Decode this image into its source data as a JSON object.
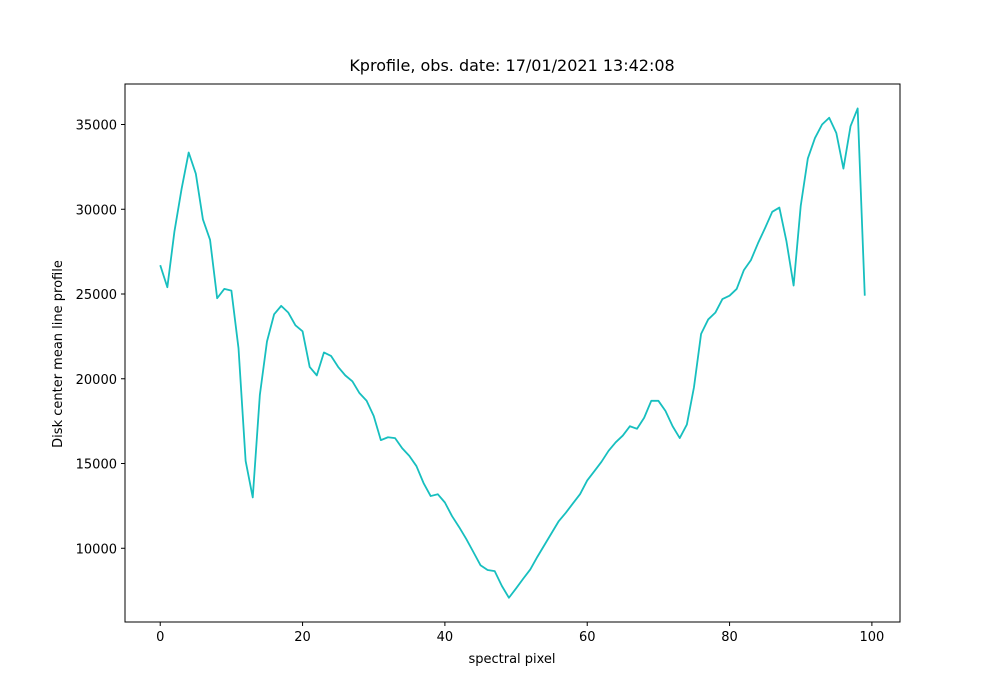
{
  "chart_data": {
    "type": "line",
    "title": "Kprofile, obs. date: 17/01/2021 13:42:08",
    "x_label": "spectral pixel",
    "y_label": "Disk center mean line profile",
    "x": [
      0,
      1,
      2,
      3,
      4,
      5,
      6,
      7,
      8,
      9,
      10,
      11,
      12,
      13,
      14,
      15,
      16,
      17,
      18,
      19,
      20,
      21,
      22,
      23,
      24,
      25,
      26,
      27,
      28,
      29,
      30,
      31,
      32,
      33,
      34,
      35,
      36,
      37,
      38,
      39,
      40,
      41,
      42,
      43,
      44,
      45,
      46,
      47,
      48,
      49,
      50,
      51,
      52,
      53,
      54,
      55,
      56,
      57,
      58,
      59,
      60,
      61,
      62,
      63,
      64,
      65,
      66,
      67,
      68,
      69,
      70,
      71,
      72,
      73,
      74,
      75,
      76,
      77,
      78,
      79,
      80,
      81,
      82,
      83,
      84,
      85,
      86,
      87,
      88,
      89,
      90,
      91,
      92,
      93,
      94,
      95,
      96,
      97,
      98,
      99
    ],
    "series": [
      {
        "color": "#17bfbf",
        "values": [
          26700,
          25400,
          28700,
          31200,
          33350,
          32100,
          29400,
          28200,
          24750,
          25300,
          25200,
          21800,
          15150,
          13000,
          19050,
          22200,
          23800,
          24300,
          23900,
          23150,
          22800,
          20700,
          20200,
          21550,
          21350,
          20700,
          20200,
          19850,
          19150,
          18700,
          17800,
          16380,
          16550,
          16500,
          15900,
          15450,
          14850,
          13850,
          13080,
          13190,
          12700,
          11900,
          11250,
          10550,
          9780,
          9000,
          8720,
          8650,
          7780,
          7080,
          7630,
          8200,
          8750,
          9500,
          10200,
          10900,
          11600,
          12100,
          12650,
          13200,
          14000,
          14550,
          15100,
          15750,
          16250,
          16650,
          17200,
          17050,
          17700,
          18700,
          18700,
          18100,
          17200,
          16500,
          17300,
          19500,
          22650,
          23500,
          23900,
          24700,
          24900,
          25300,
          26400,
          27000,
          28000,
          28900,
          29850,
          30100,
          28100,
          25500,
          30200,
          33000,
          34200,
          35000,
          35400,
          34500,
          32400,
          34900,
          35950,
          24900
        ]
      }
    ],
    "xlim": [
      -4.95,
      103.95
    ],
    "ylim": [
      5650,
      37390
    ],
    "xticks": [
      0,
      20,
      40,
      60,
      80,
      100
    ],
    "yticks": [
      10000,
      15000,
      20000,
      25000,
      30000,
      35000
    ],
    "grid": false
  }
}
